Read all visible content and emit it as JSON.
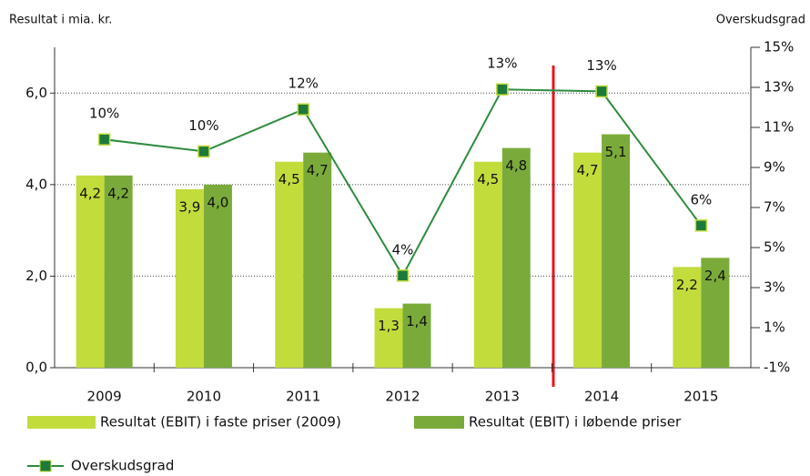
{
  "chart_data": {
    "type": "bar",
    "ylabel": "Resultat i mia. kr.",
    "y2label": "Overskudsgrad",
    "categories": [
      "2009",
      "2010",
      "2011",
      "2012",
      "2013",
      "2014",
      "2015"
    ],
    "ylim": [
      0,
      7
    ],
    "yticks": [
      {
        "value": 0,
        "label": "0,0"
      },
      {
        "value": 2,
        "label": "2,0"
      },
      {
        "value": 4,
        "label": "4,0"
      },
      {
        "value": 6,
        "label": "6,0"
      }
    ],
    "y2lim": [
      -1,
      15
    ],
    "y2ticks": [
      {
        "value": -1,
        "label": "-1%"
      },
      {
        "value": 1,
        "label": "1%"
      },
      {
        "value": 3,
        "label": "3%"
      },
      {
        "value": 5,
        "label": "5%"
      },
      {
        "value": 7,
        "label": "7%"
      },
      {
        "value": 9,
        "label": "9%"
      },
      {
        "value": 11,
        "label": "11%"
      },
      {
        "value": 13,
        "label": "13%"
      },
      {
        "value": 15,
        "label": "15%"
      }
    ],
    "grid": true,
    "series": [
      {
        "name": "Resultat (EBIT) i faste priser (2009)",
        "color": "#c2dc3c",
        "values": [
          4.2,
          3.9,
          4.5,
          1.3,
          4.5,
          4.7,
          2.2
        ],
        "value_labels": [
          "4,2",
          "3,9",
          "4,5",
          "1,3",
          "4,5",
          "4,7",
          "2,2"
        ]
      },
      {
        "name": "Resultat (EBIT) i løbende priser",
        "color": "#7aab3a",
        "values": [
          4.2,
          4.0,
          4.7,
          1.4,
          4.8,
          5.1,
          2.4
        ],
        "value_labels": [
          "4,2",
          "4,0",
          "4,7",
          "1,4",
          "4,8",
          "5,1",
          "2,4"
        ]
      },
      {
        "name": "Overskudsgrad",
        "type": "line",
        "axis": "y2",
        "color": "#2e8b3e",
        "values": [
          10.4,
          9.8,
          11.9,
          3.6,
          12.9,
          12.8,
          6.1
        ],
        "value_labels": [
          "10%",
          "10%",
          "12%",
          "4%",
          "13%",
          "13%",
          "6%"
        ]
      }
    ]
  }
}
